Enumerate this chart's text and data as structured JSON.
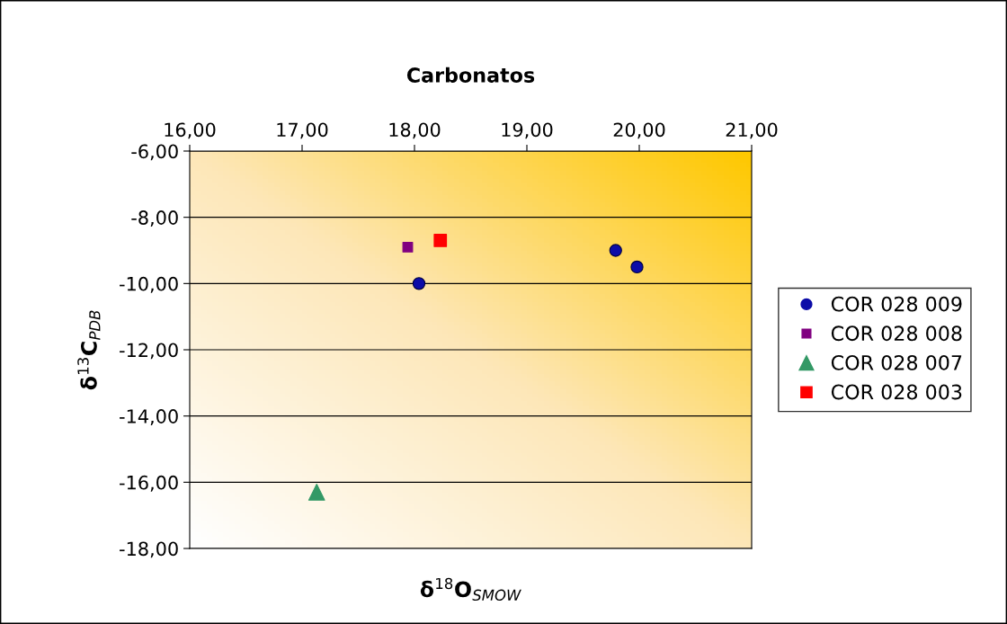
{
  "chart_data": {
    "type": "scatter",
    "title": "Carbonatos",
    "xlabel": "δ$^{18}$O$_{SMOW}$",
    "ylabel": "δ$^{13}$C$_{PDB}$",
    "xlim": [
      16,
      21
    ],
    "xticks": [
      {
        "value": 16,
        "label": "16,00"
      },
      {
        "value": 17,
        "label": "17,00"
      },
      {
        "value": 18,
        "label": "18,00"
      },
      {
        "value": 19,
        "label": "19,00"
      },
      {
        "value": 20,
        "label": "20,00"
      },
      {
        "value": 21,
        "label": "21,00"
      }
    ],
    "ylim": [
      -18,
      -6
    ],
    "yticks": [
      {
        "value": -18,
        "label": "-18,00"
      },
      {
        "value": -16,
        "label": "-16,00"
      },
      {
        "value": -14,
        "label": "-14,00"
      },
      {
        "value": -12,
        "label": "-12,00"
      },
      {
        "value": -10,
        "label": "-10,00"
      },
      {
        "value": -8,
        "label": "-8,00"
      },
      {
        "value": -6,
        "label": "-6,00"
      }
    ],
    "grid": "y",
    "legend": "right",
    "series": [
      {
        "name": "COR 028 009",
        "color": "#0c0ca8",
        "marker": "circle",
        "x": [
          18.04,
          19.79,
          19.98
        ],
        "values": [
          -10.0,
          -9.0,
          -9.5
        ]
      },
      {
        "name": "COR 028 008",
        "color": "#800080",
        "marker": "square",
        "x": [
          17.94
        ],
        "values": [
          -8.9
        ]
      },
      {
        "name": "COR 028 007",
        "color": "#339966",
        "marker": "triangle",
        "x": [
          17.13
        ],
        "values": [
          -16.3
        ]
      },
      {
        "name": "COR 028 003",
        "color": "#ff0000",
        "marker": "square",
        "x": [
          18.23
        ],
        "values": [
          -8.7
        ]
      }
    ]
  }
}
